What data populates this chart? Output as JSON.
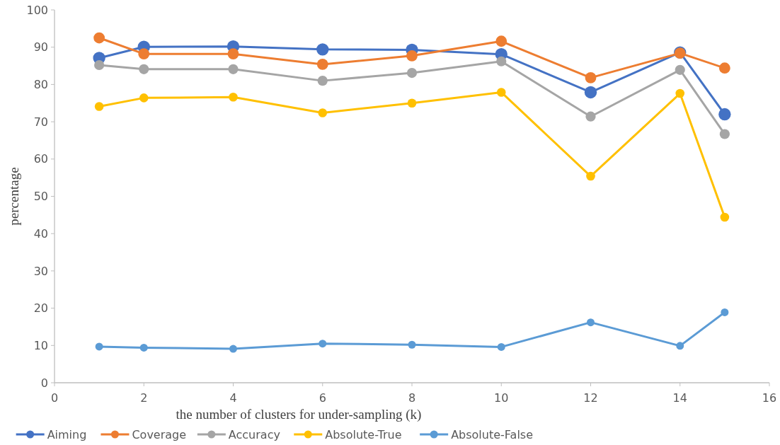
{
  "chart_data": {
    "type": "line",
    "xlabel": "the number of clusters for under-sampling (k)",
    "ylabel": "percentage",
    "x": [
      1,
      2,
      4,
      6,
      8,
      10,
      12,
      14,
      15
    ],
    "xlim": [
      0,
      16
    ],
    "xticks": [
      0,
      2,
      4,
      6,
      8,
      10,
      12,
      14,
      16
    ],
    "ylim": [
      0,
      100
    ],
    "yticks": [
      0,
      10,
      20,
      30,
      40,
      50,
      60,
      70,
      80,
      90,
      100
    ],
    "grid": false,
    "legend": "bottom",
    "marker": "circle",
    "line_style": "solid",
    "series": [
      {
        "name": "Aiming",
        "color": "#4472c4",
        "values": [
          87.1,
          90.1,
          90.2,
          89.4,
          89.3,
          88.1,
          77.9,
          88.6,
          72.0
        ]
      },
      {
        "name": "Coverage",
        "color": "#ed7d31",
        "values": [
          92.5,
          88.2,
          88.2,
          85.4,
          87.7,
          91.6,
          81.8,
          88.4,
          84.4
        ]
      },
      {
        "name": "Accuracy",
        "color": "#a5a5a5",
        "values": [
          85.2,
          84.1,
          84.1,
          81.0,
          83.1,
          86.2,
          71.4,
          83.9,
          66.7
        ]
      },
      {
        "name": "Absolute-True",
        "color": "#ffc000",
        "values": [
          74.1,
          76.4,
          76.6,
          72.4,
          75.0,
          77.9,
          55.4,
          77.6,
          44.4
        ]
      },
      {
        "name": "Absolute-False",
        "color": "#5b9bd5",
        "values": [
          9.7,
          9.4,
          9.1,
          10.5,
          10.2,
          9.6,
          16.2,
          9.9,
          18.9
        ]
      }
    ]
  }
}
